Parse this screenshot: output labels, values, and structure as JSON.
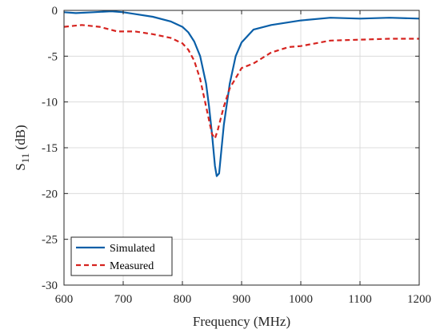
{
  "chart_data": {
    "type": "line",
    "title": "",
    "xlabel": "Frequency (MHz)",
    "ylabel": {
      "main": "S",
      "sub": "11",
      "unit": " (dB)"
    },
    "xlim": [
      600,
      1200
    ],
    "ylim": [
      -30,
      0
    ],
    "xticks": [
      600,
      700,
      800,
      900,
      1000,
      1100,
      1200
    ],
    "yticks": [
      -30,
      -25,
      -20,
      -15,
      -10,
      -5,
      0
    ],
    "xtick_labels": [
      "600",
      "700",
      "800",
      "900",
      "1000",
      "1100",
      "1200"
    ],
    "ytick_labels": [
      "-30",
      "-25",
      "-20",
      "-15",
      "-10",
      "-5",
      "0"
    ],
    "grid": true,
    "legend_position": "bottom-left",
    "series": [
      {
        "name": "Simulated",
        "color": "#0a5fa8",
        "style": "solid",
        "x": [
          600,
          620,
          650,
          680,
          700,
          720,
          750,
          780,
          800,
          810,
          820,
          830,
          840,
          845,
          850,
          855,
          858,
          862,
          870,
          880,
          890,
          900,
          920,
          950,
          1000,
          1050,
          1100,
          1150,
          1200
        ],
        "y": [
          -0.2,
          -0.3,
          -0.2,
          -0.1,
          -0.2,
          -0.4,
          -0.7,
          -1.2,
          -1.8,
          -2.4,
          -3.4,
          -5.0,
          -8.0,
          -10.5,
          -13.5,
          -17.0,
          -18.1,
          -17.8,
          -12.5,
          -8.0,
          -5.0,
          -3.5,
          -2.1,
          -1.6,
          -1.1,
          -0.8,
          -0.9,
          -0.8,
          -0.9
        ]
      },
      {
        "name": "Measured",
        "color": "#d6231f",
        "style": "dashed",
        "x": [
          600,
          630,
          660,
          690,
          720,
          750,
          780,
          800,
          810,
          820,
          830,
          840,
          850,
          855,
          860,
          870,
          880,
          900,
          920,
          950,
          980,
          1000,
          1050,
          1100,
          1150,
          1200
        ],
        "y": [
          -1.8,
          -1.6,
          -1.8,
          -2.3,
          -2.3,
          -2.6,
          -3.0,
          -3.6,
          -4.3,
          -5.5,
          -7.5,
          -10.5,
          -13.5,
          -14.0,
          -13.0,
          -10.5,
          -8.5,
          -6.3,
          -5.8,
          -4.6,
          -4.0,
          -3.9,
          -3.3,
          -3.2,
          -3.1,
          -3.1
        ]
      }
    ]
  }
}
